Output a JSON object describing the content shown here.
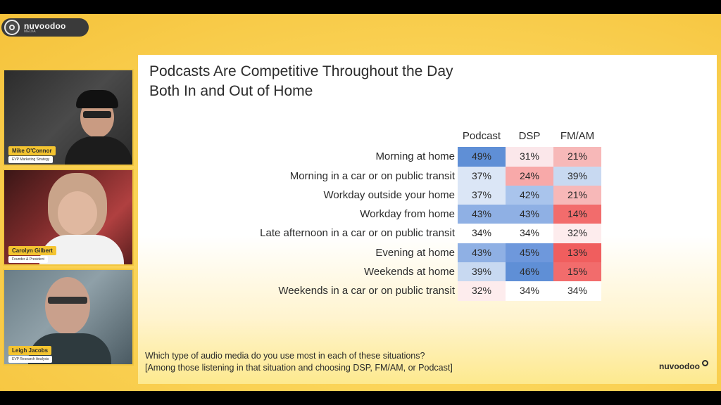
{
  "brand": {
    "name": "nuvoodoo",
    "tagline": "MEDIA",
    "accent": "#f4c430"
  },
  "participants": [
    {
      "name": "Mike O'Connor",
      "role": "EVP Marketing Strategy"
    },
    {
      "name": "Carolyn Gilbert",
      "role": "Founder & President"
    },
    {
      "name": "Leigh Jacobs",
      "role": "EVP Research Analysis"
    }
  ],
  "slide": {
    "title_line1": "Podcasts Are Competitive Throughout the Day",
    "title_line2": "Both In and Out of Home",
    "columns": [
      "Podcast",
      "DSP",
      "FM/AM"
    ],
    "rows": [
      {
        "label": "Morning at home",
        "values": [
          "49%",
          "31%",
          "21%"
        ]
      },
      {
        "label": "Morning in a car or on public transit",
        "values": [
          "37%",
          "24%",
          "39%"
        ]
      },
      {
        "label": "Workday outside your home",
        "values": [
          "37%",
          "42%",
          "21%"
        ]
      },
      {
        "label": "Workday from home",
        "values": [
          "43%",
          "43%",
          "14%"
        ]
      },
      {
        "label": "Late afternoon in a car or on public transit",
        "values": [
          "34%",
          "34%",
          "32%"
        ]
      },
      {
        "label": "Evening at home",
        "values": [
          "43%",
          "45%",
          "13%"
        ]
      },
      {
        "label": "Weekends at home",
        "values": [
          "39%",
          "46%",
          "15%"
        ]
      },
      {
        "label": "Weekends in a car or on public transit",
        "values": [
          "32%",
          "34%",
          "34%"
        ]
      }
    ],
    "cell_colors": [
      [
        "#5f8fd6",
        "#fbe7ea",
        "#f7b8b8"
      ],
      [
        "#dbe6f6",
        "#f8a9a9",
        "#c8d9f1"
      ],
      [
        "#dbe6f6",
        "#a9c4ec",
        "#f7b8b8"
      ],
      [
        "#8fb0e4",
        "#8fb0e4",
        "#f26c6c"
      ],
      [
        "#ffffff",
        "#ffffff",
        "#fdeced"
      ],
      [
        "#8fb0e4",
        "#6e98dc",
        "#f05e5e"
      ],
      [
        "#c8d9f1",
        "#5f8fd6",
        "#f26c6c"
      ],
      [
        "#fdeced",
        "#ffffff",
        "#ffffff"
      ]
    ],
    "footnote_line1": "Which type of audio media do you use most in each of these situations?",
    "footnote_line2": "[Among those listening in that situation and choosing DSP, FM/AM, or Podcast]",
    "logo_text": "nuvoodoo"
  }
}
